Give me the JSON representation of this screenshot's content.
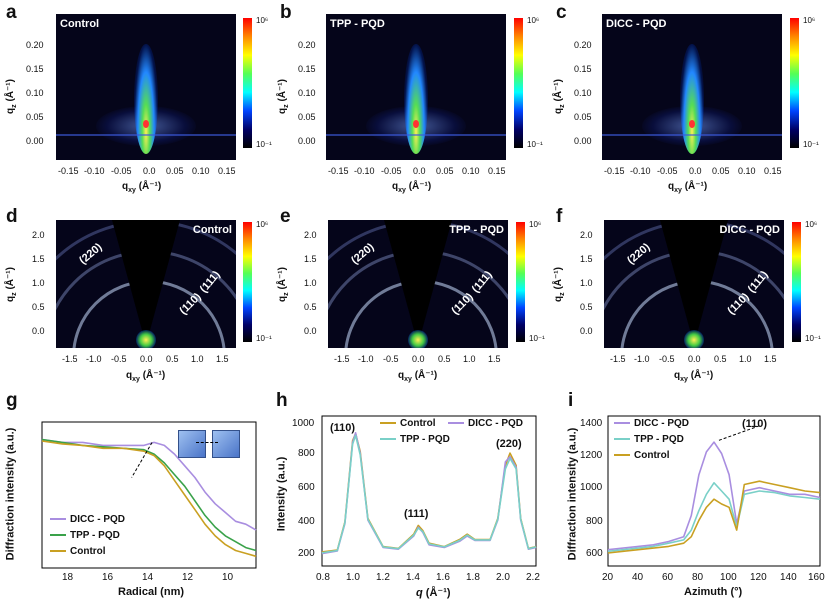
{
  "row1": {
    "labels": [
      "a",
      "b",
      "c"
    ],
    "titles": [
      "Control",
      "TPP - PQD",
      "DICC - PQD"
    ],
    "ylabel": "q",
    "ysub": "z",
    "yunit": "(Å⁻¹)",
    "xlabel": "q",
    "xsub": "xy",
    "xunit": "(Å⁻¹)",
    "yticks": [
      "0.20",
      "0.15",
      "0.10",
      "0.05",
      "0.00"
    ],
    "xticks": [
      "-0.15",
      "-0.10",
      "-0.05",
      "0.0",
      "0.05",
      "0.10",
      "0.15"
    ],
    "cbar_top": "10⁶",
    "cbar_bottom": "10⁻¹"
  },
  "row2": {
    "labels": [
      "d",
      "e",
      "f"
    ],
    "titles": [
      "Control",
      "TPP - PQD",
      "DICC - PQD"
    ],
    "yticks": [
      "2.0",
      "1.5",
      "1.0",
      "0.5",
      "0.0"
    ],
    "xticks": [
      "-1.5",
      "-1.0",
      "-0.5",
      "0.0",
      "0.5",
      "1.0",
      "1.5"
    ],
    "rings": [
      "(220)",
      "(111)",
      "(110)"
    ],
    "cbar_top": "10⁶",
    "cbar_bottom": "10⁻¹"
  },
  "row3": {
    "g": {
      "label": "g",
      "ylabel": "Diffraction intensity (a.u.)",
      "xlabel": "Radical (nm)",
      "xticks": [
        "18",
        "16",
        "14",
        "12",
        "10"
      ],
      "legend": [
        "DICC - PQD",
        "TPP - PQD",
        "Control"
      ]
    },
    "h": {
      "label": "h",
      "ylabel": "Intensity (a.u.)",
      "xlabel_q": "q",
      "xlabel_unit": "(Å⁻¹)",
      "yticks": [
        "1000",
        "800",
        "600",
        "400",
        "200"
      ],
      "xticks": [
        "0.8",
        "1.0",
        "1.2",
        "1.4",
        "1.6",
        "1.8",
        "2.0",
        "2.2"
      ],
      "legend": [
        "Control",
        "DICC - PQD",
        "TPP - PQD"
      ],
      "peaks": [
        "(110)",
        "(111)",
        "(220)"
      ]
    },
    "i": {
      "label": "i",
      "ylabel": "Diffraction intensity (a.u.)",
      "xlabel": "Azimuth (°)",
      "yticks": [
        "1400",
        "1200",
        "1000",
        "800",
        "600"
      ],
      "xticks": [
        "20",
        "40",
        "60",
        "80",
        "100",
        "120",
        "140",
        "160"
      ],
      "legend": [
        "DICC - PQD",
        "TPP - PQD",
        "Control"
      ],
      "annotation": "(110)"
    }
  },
  "colors": {
    "dicc": "#a98ee0",
    "tpp": "#3aa24a",
    "tpp_light": "#7ad0c8",
    "control": "#c9a022"
  },
  "chart_data": [
    {
      "type": "line",
      "title": "",
      "xlabel": "Radical (nm)",
      "ylabel": "Diffraction intensity (a.u.)",
      "xlim": [
        19,
        8.5
      ],
      "x": [
        19,
        18,
        17,
        16,
        15,
        14,
        13.5,
        13,
        12.5,
        12,
        11.5,
        11,
        10.5,
        10,
        9.5,
        9,
        8.5
      ],
      "series": [
        {
          "name": "DICC - PQD",
          "values": [
            0.88,
            0.86,
            0.86,
            0.84,
            0.84,
            0.84,
            0.86,
            0.84,
            0.78,
            0.7,
            0.62,
            0.52,
            0.44,
            0.38,
            0.32,
            0.3,
            0.26
          ]
        },
        {
          "name": "TPP - PQD",
          "values": [
            0.88,
            0.86,
            0.84,
            0.83,
            0.82,
            0.81,
            0.78,
            0.72,
            0.64,
            0.56,
            0.46,
            0.36,
            0.28,
            0.22,
            0.18,
            0.14,
            0.12
          ]
        },
        {
          "name": "Control",
          "values": [
            0.87,
            0.85,
            0.84,
            0.82,
            0.82,
            0.8,
            0.77,
            0.7,
            0.6,
            0.5,
            0.4,
            0.3,
            0.22,
            0.16,
            0.12,
            0.1,
            0.08
          ]
        }
      ]
    },
    {
      "type": "line",
      "title": "",
      "xlabel": "q (Å⁻¹)",
      "ylabel": "Intensity (a.u.)",
      "xlim": [
        0.8,
        2.2
      ],
      "ylim": [
        150,
        1000
      ],
      "x": [
        0.8,
        0.9,
        0.95,
        1.0,
        1.02,
        1.05,
        1.1,
        1.2,
        1.3,
        1.4,
        1.43,
        1.46,
        1.5,
        1.6,
        1.7,
        1.75,
        1.8,
        1.9,
        1.95,
        2.0,
        2.03,
        2.07,
        2.1,
        2.15,
        2.2
      ],
      "series": [
        {
          "name": "Control",
          "values": [
            230,
            240,
            400,
            860,
            900,
            800,
            420,
            260,
            250,
            330,
            380,
            350,
            280,
            260,
            300,
            330,
            300,
            300,
            420,
            720,
            790,
            720,
            420,
            250,
            260
          ]
        },
        {
          "name": "DICC - PQD",
          "values": [
            220,
            235,
            390,
            850,
            905,
            790,
            410,
            255,
            245,
            320,
            370,
            340,
            270,
            255,
            290,
            320,
            295,
            295,
            410,
            740,
            770,
            710,
            410,
            245,
            255
          ]
        },
        {
          "name": "TPP - PQD",
          "values": [
            225,
            238,
            395,
            840,
            890,
            780,
            415,
            258,
            248,
            325,
            365,
            345,
            275,
            258,
            295,
            325,
            298,
            298,
            415,
            700,
            760,
            700,
            415,
            248,
            258
          ]
        }
      ]
    },
    {
      "type": "line",
      "title": "",
      "xlabel": "Azimuth (°)",
      "ylabel": "Diffraction intensity (a.u.)",
      "xlim": [
        20,
        160
      ],
      "ylim": [
        540,
        1460
      ],
      "x": [
        20,
        30,
        40,
        50,
        60,
        70,
        75,
        80,
        85,
        90,
        95,
        100,
        105,
        110,
        120,
        130,
        140,
        150,
        160
      ],
      "series": [
        {
          "name": "DICC - PQD",
          "values": [
            640,
            650,
            660,
            670,
            690,
            720,
            850,
            1100,
            1240,
            1300,
            1230,
            1100,
            800,
            1000,
            1020,
            1000,
            980,
            980,
            960
          ]
        },
        {
          "name": "TPP - PQD",
          "values": [
            630,
            640,
            650,
            660,
            680,
            700,
            760,
            880,
            980,
            1050,
            1000,
            950,
            780,
            980,
            1000,
            990,
            970,
            960,
            950
          ]
        },
        {
          "name": "Control",
          "values": [
            620,
            630,
            640,
            650,
            660,
            680,
            720,
            820,
            900,
            950,
            920,
            900,
            760,
            1040,
            1060,
            1040,
            1020,
            1000,
            990
          ]
        }
      ]
    }
  ]
}
